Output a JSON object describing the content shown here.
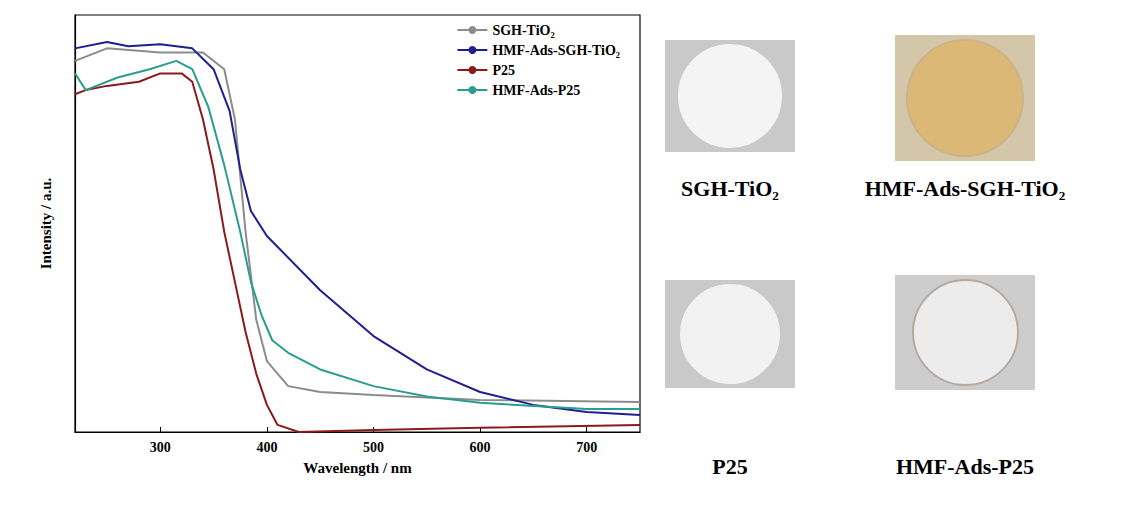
{
  "chart_data": {
    "type": "line",
    "x_label": "Wavelength / nm",
    "y_label": "Intensity / a.u.",
    "xlim": [
      220,
      750
    ],
    "xticks": [
      300,
      400,
      500,
      600,
      700
    ],
    "ylim": [
      0,
      1
    ],
    "tick_labels": "x",
    "grid": false,
    "legend": "upper right",
    "series": [
      {
        "name": "SGH-TiO₂",
        "color": "#8c8c8c",
        "x": [
          220,
          250,
          300,
          340,
          360,
          370,
          380,
          390,
          400,
          420,
          450,
          500,
          600,
          750
        ],
        "values": [
          0.89,
          0.92,
          0.91,
          0.91,
          0.87,
          0.75,
          0.48,
          0.27,
          0.17,
          0.11,
          0.096,
          0.089,
          0.077,
          0.072
        ]
      },
      {
        "name": "HMF-Ads-SGH-TiO₂",
        "color": "#1f1f8f",
        "x": [
          220,
          250,
          270,
          300,
          330,
          350,
          365,
          375,
          385,
          400,
          450,
          500,
          550,
          600,
          650,
          700,
          750
        ],
        "values": [
          0.92,
          0.935,
          0.925,
          0.93,
          0.92,
          0.87,
          0.77,
          0.63,
          0.53,
          0.47,
          0.34,
          0.23,
          0.15,
          0.096,
          0.065,
          0.048,
          0.041
        ]
      },
      {
        "name": "P25",
        "color": "#8b1a1a",
        "x": [
          220,
          230,
          250,
          280,
          300,
          320,
          330,
          340,
          350,
          360,
          370,
          380,
          390,
          400,
          410,
          430,
          500,
          600,
          750
        ],
        "values": [
          0.81,
          0.82,
          0.83,
          0.84,
          0.86,
          0.86,
          0.84,
          0.75,
          0.63,
          0.48,
          0.36,
          0.24,
          0.14,
          0.065,
          0.017,
          0,
          0.005,
          0.01,
          0.017
        ]
      },
      {
        "name": "HMF-Ads-P25",
        "color": "#2a9d8f",
        "x": [
          220,
          230,
          260,
          290,
          315,
          330,
          345,
          360,
          375,
          385,
          395,
          405,
          420,
          450,
          500,
          550,
          600,
          700,
          750
        ],
        "values": [
          0.86,
          0.82,
          0.85,
          0.87,
          0.89,
          0.87,
          0.78,
          0.64,
          0.48,
          0.36,
          0.28,
          0.22,
          0.19,
          0.15,
          0.11,
          0.085,
          0.07,
          0.055,
          0.055
        ]
      }
    ]
  },
  "photos": [
    {
      "label": "SGH-TiO₂"
    },
    {
      "label": "HMF-Ads-SGH-TiO₂"
    },
    {
      "label": "P25"
    },
    {
      "label": "HMF-Ads-P25"
    }
  ]
}
